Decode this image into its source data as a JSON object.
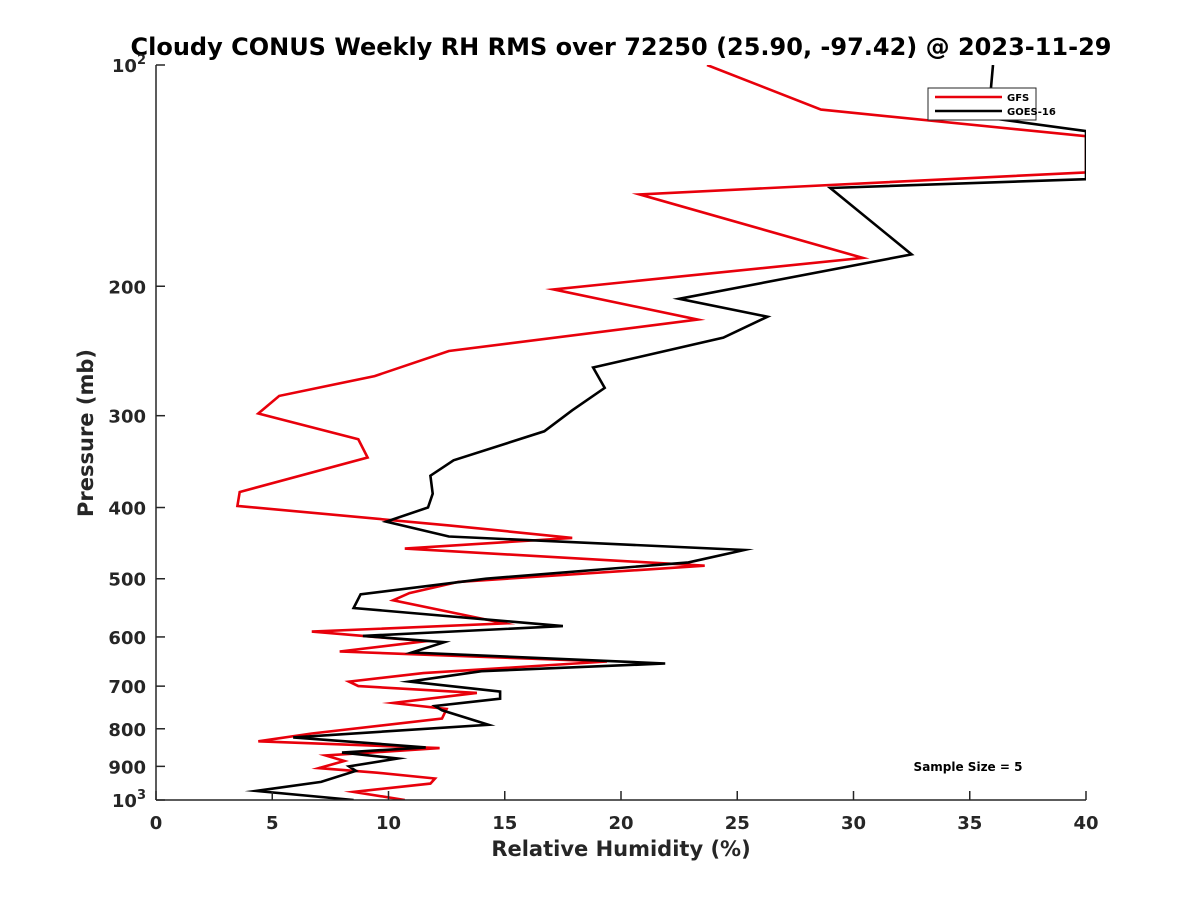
{
  "chart_data": {
    "type": "line",
    "title": "Cloudy CONUS Weekly RH RMS over 72250 (25.90, -97.42) @ 2023-11-29",
    "xlabel": "Relative Humidity (%)",
    "ylabel": "Pressure (mb)",
    "xlim": [
      0,
      40
    ],
    "ylim": [
      100,
      1000
    ],
    "y_scale": "log",
    "y_reversed": true,
    "grid": false,
    "legend_position": "top-right",
    "x_ticks": [
      "0",
      "5",
      "10",
      "15",
      "20",
      "25",
      "30",
      "35",
      "40"
    ],
    "y_ticks": [
      {
        "value": 100,
        "base": "10",
        "exp": "2"
      },
      {
        "value": 200,
        "label": "200"
      },
      {
        "value": 300,
        "label": "300"
      },
      {
        "value": 400,
        "label": "400"
      },
      {
        "value": 500,
        "label": "500"
      },
      {
        "value": 600,
        "label": "600"
      },
      {
        "value": 700,
        "label": "700"
      },
      {
        "value": 800,
        "label": "800"
      },
      {
        "value": 900,
        "label": "900"
      },
      {
        "value": 1000,
        "base": "10",
        "exp": "3"
      }
    ],
    "annotation": "Sample Size = 5",
    "series": [
      {
        "name": "GFS",
        "color": "#e8000b",
        "points": [
          [
            23.7,
            100
          ],
          [
            28.6,
            115
          ],
          [
            40,
            125
          ],
          [
            40,
            135
          ],
          [
            40,
            140
          ],
          [
            20.8,
            150
          ],
          [
            30.4,
            183
          ],
          [
            17.1,
            202
          ],
          [
            23.3,
            222
          ],
          [
            12.6,
            245
          ],
          [
            9.4,
            265
          ],
          [
            5.3,
            282
          ],
          [
            4.4,
            298
          ],
          [
            8.7,
            323
          ],
          [
            9.1,
            342
          ],
          [
            3.6,
            381
          ],
          [
            3.5,
            398
          ],
          [
            12.6,
            423
          ],
          [
            17.9,
            440
          ],
          [
            10.7,
            455
          ],
          [
            23.6,
            480
          ],
          [
            13.0,
            505
          ],
          [
            10.9,
            523
          ],
          [
            10.2,
            535
          ],
          [
            15.0,
            575
          ],
          [
            6.7,
            590
          ],
          [
            11.6,
            608
          ],
          [
            7.9,
            628
          ],
          [
            19.4,
            648
          ],
          [
            11.5,
            672
          ],
          [
            8.3,
            690
          ],
          [
            8.7,
            700
          ],
          [
            13.8,
            715
          ],
          [
            10.2,
            738
          ],
          [
            12.5,
            752
          ],
          [
            12.3,
            775
          ],
          [
            6.7,
            812
          ],
          [
            4.4,
            832
          ],
          [
            12.2,
            850
          ],
          [
            7.3,
            870
          ],
          [
            8.1,
            885
          ],
          [
            7.0,
            905
          ],
          [
            9.5,
            918
          ],
          [
            12.0,
            935
          ],
          [
            11.8,
            950
          ],
          [
            8.5,
            975
          ],
          [
            10.7,
            1000
          ]
        ]
      },
      {
        "name": "GOES-16",
        "color": "#000000",
        "points": [
          [
            36.0,
            100
          ],
          [
            35.8,
            118
          ],
          [
            40,
            123
          ],
          [
            40,
            143
          ],
          [
            29.0,
            147
          ],
          [
            32.5,
            181
          ],
          [
            22.5,
            208
          ],
          [
            26.3,
            220
          ],
          [
            24.4,
            235
          ],
          [
            18.8,
            258
          ],
          [
            19.3,
            275
          ],
          [
            17.9,
            295
          ],
          [
            16.7,
            315
          ],
          [
            12.8,
            345
          ],
          [
            11.8,
            362
          ],
          [
            11.9,
            383
          ],
          [
            11.7,
            400
          ],
          [
            9.9,
            418
          ],
          [
            12.6,
            438
          ],
          [
            25.3,
            457
          ],
          [
            22.9,
            475
          ],
          [
            14.2,
            500
          ],
          [
            8.8,
            525
          ],
          [
            8.5,
            548
          ],
          [
            17.5,
            580
          ],
          [
            8.9,
            598
          ],
          [
            12.4,
            610
          ],
          [
            11.0,
            630
          ],
          [
            21.9,
            652
          ],
          [
            14.0,
            668
          ],
          [
            10.9,
            690
          ],
          [
            14.8,
            712
          ],
          [
            14.8,
            728
          ],
          [
            12.0,
            745
          ],
          [
            12.3,
            755
          ],
          [
            14.3,
            790
          ],
          [
            5.9,
            822
          ],
          [
            11.6,
            848
          ],
          [
            8.0,
            862
          ],
          [
            10.4,
            878
          ],
          [
            8.3,
            900
          ],
          [
            8.6,
            913
          ],
          [
            7.1,
            945
          ],
          [
            4.3,
            972
          ],
          [
            8.5,
            1000
          ]
        ]
      }
    ]
  }
}
